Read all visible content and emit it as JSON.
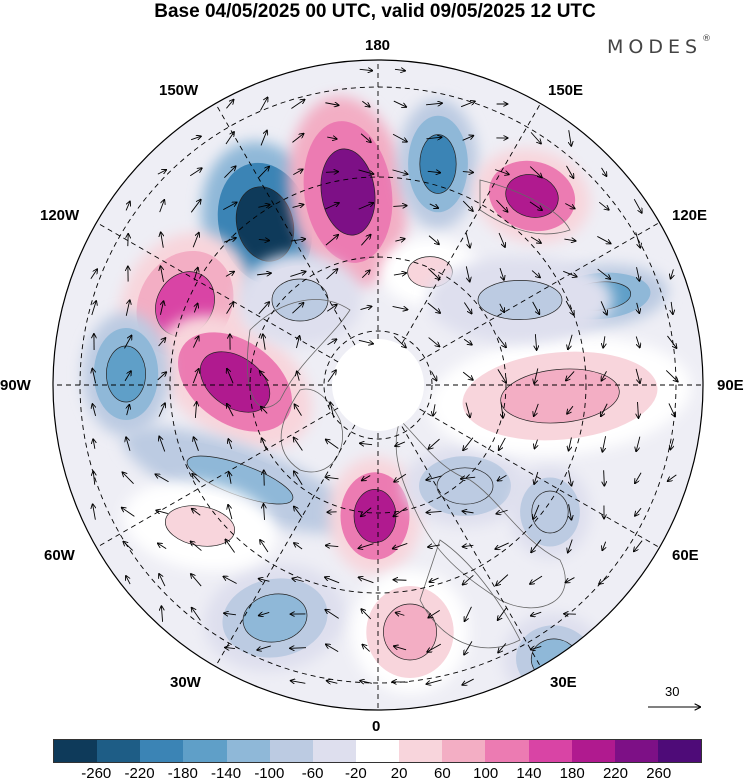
{
  "title": "Base 04/05/2025 00 UTC, valid 09/05/2025 12 UTC",
  "brand": {
    "name": "MODES",
    "mark": "®"
  },
  "map": {
    "projection": "north-polar-stereographic",
    "longitude_labels": [
      "180",
      "150E",
      "120E",
      "90E",
      "60E",
      "30E",
      "0",
      "30W",
      "60W",
      "90W",
      "120W",
      "150W"
    ],
    "reference_vector": {
      "label": "30"
    },
    "anomalies": [
      {
        "sign": "negative",
        "value": -260
      },
      {
        "sign": "positive",
        "value": 240
      },
      {
        "sign": "negative",
        "value": -180
      },
      {
        "sign": "positive",
        "value": 200
      },
      {
        "sign": "negative",
        "value": -140
      },
      {
        "sign": "positive",
        "value": 180
      },
      {
        "sign": "positive",
        "value": 200
      },
      {
        "sign": "negative",
        "value": -140
      },
      {
        "sign": "negative",
        "value": -120
      },
      {
        "sign": "positive",
        "value": 220
      },
      {
        "sign": "negative",
        "value": -80
      },
      {
        "sign": "negative",
        "value": -80
      },
      {
        "sign": "positive",
        "value": 80
      },
      {
        "sign": "negative",
        "value": -100
      },
      {
        "sign": "positive",
        "value": 100
      },
      {
        "sign": "negative",
        "value": -100
      },
      {
        "sign": "positive",
        "value": 60
      },
      {
        "sign": "positive",
        "value": 60
      },
      {
        "sign": "negative",
        "value": -60
      },
      {
        "sign": "negative",
        "value": -60
      }
    ]
  },
  "colorbar": {
    "ticks": [
      "-260",
      "-220",
      "-180",
      "-140",
      "-100",
      "-60",
      "-20",
      "20",
      "60",
      "100",
      "140",
      "180",
      "220",
      "260"
    ],
    "colors": [
      "#0e3a5a",
      "#1e5d86",
      "#3b84b5",
      "#5f9fc8",
      "#8fb8d8",
      "#bccbe2",
      "#dedfee",
      "#ffffff",
      "#f8d5dc",
      "#f3aec4",
      "#ec7bb2",
      "#d944a5",
      "#b01a8f",
      "#7d1086",
      "#4e0b78"
    ]
  }
}
